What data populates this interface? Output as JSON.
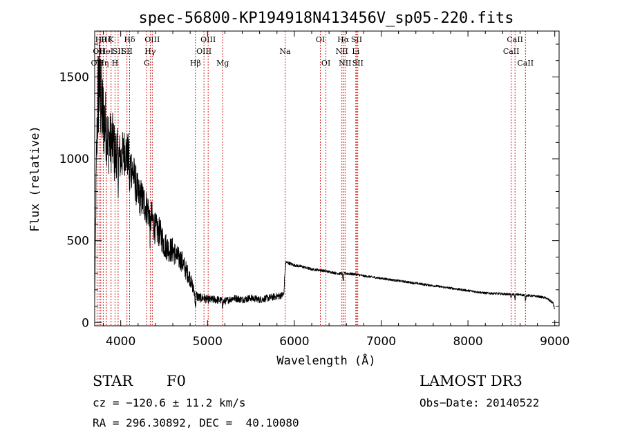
{
  "chart_data": {
    "type": "line",
    "title": "spec-56800-KP194918N413456V_sp05-220.fits",
    "xlabel": "Wavelength (Å)",
    "ylabel": "Flux (relative)",
    "xlim": [
      3700,
      9050
    ],
    "ylim": [
      -20,
      1780
    ],
    "x_ticks": [
      4000,
      5000,
      6000,
      7000,
      8000,
      9000
    ],
    "y_ticks": [
      0,
      500,
      1000,
      1500
    ],
    "line_color": "#000000",
    "marker_color": "#cc0000",
    "spectrum_profile": {
      "x": [
        3700,
        3720,
        3740,
        3760,
        3780,
        3800,
        3830,
        3860,
        3900,
        3950,
        4000,
        4050,
        4100,
        4150,
        4200,
        4250,
        4300,
        4350,
        4400,
        4450,
        4500,
        4550,
        4600,
        4650,
        4700,
        4750,
        4800,
        4850,
        4900,
        4950,
        5000,
        5100,
        5200,
        5300,
        5400,
        5500,
        5600,
        5700,
        5800,
        5880,
        5890,
        5900,
        5950,
        6000,
        6100,
        6200,
        6300,
        6400,
        6500,
        6600,
        6700,
        6800,
        7000,
        7200,
        7400,
        7600,
        7800,
        8000,
        8200,
        8400,
        8600,
        8800,
        8900,
        8980,
        9000
      ],
      "y": [
        120,
        1000,
        1400,
        1450,
        1300,
        1250,
        1200,
        1100,
        1100,
        1050,
        1000,
        1050,
        1000,
        900,
        780,
        750,
        700,
        650,
        570,
        550,
        480,
        450,
        440,
        400,
        380,
        320,
        270,
        180,
        150,
        150,
        140,
        140,
        130,
        150,
        140,
        150,
        140,
        150,
        160,
        170,
        330,
        370,
        360,
        350,
        340,
        325,
        320,
        310,
        300,
        300,
        295,
        285,
        270,
        255,
        240,
        225,
        210,
        195,
        180,
        175,
        170,
        160,
        150,
        120,
        80
      ],
      "noise": [
        0,
        150,
        320,
        320,
        300,
        260,
        220,
        200,
        190,
        170,
        150,
        150,
        140,
        130,
        120,
        120,
        110,
        110,
        100,
        90,
        90,
        80,
        80,
        70,
        70,
        60,
        50,
        35,
        30,
        28,
        25,
        25,
        22,
        22,
        22,
        22,
        22,
        22,
        22,
        22,
        10,
        10,
        10,
        9,
        9,
        8,
        8,
        8,
        8,
        8,
        8,
        7,
        7,
        7,
        7,
        7,
        7,
        7,
        7,
        7,
        7,
        7,
        7,
        8,
        8
      ]
    },
    "absorption_features": [
      {
        "x": 3934,
        "depth": 120
      },
      {
        "x": 3970,
        "depth": 110
      },
      {
        "x": 4102,
        "depth": 150
      },
      {
        "x": 4340,
        "depth": 120
      },
      {
        "x": 4861,
        "depth": 70
      },
      {
        "x": 5175,
        "depth": 30
      },
      {
        "x": 5893,
        "depth": 40
      },
      {
        "x": 6563,
        "depth": 50
      },
      {
        "x": 8498,
        "depth": 25
      },
      {
        "x": 8542,
        "depth": 30
      },
      {
        "x": 8662,
        "depth": 30
      }
    ],
    "line_markers": [
      {
        "x": 3727,
        "label": "OII",
        "row": 3
      },
      {
        "x": 3750,
        "label": "OII",
        "row": 2
      },
      {
        "x": 3770,
        "label": "Hθ",
        "row": 1
      },
      {
        "x": 3798,
        "label": "Hη",
        "row": 3
      },
      {
        "x": 3835,
        "label": "Hζ",
        "row": 1
      },
      {
        "x": 3835,
        "label": "HeI",
        "row": 2
      },
      {
        "x": 3889,
        "label": "K",
        "row": 1
      },
      {
        "x": 3934,
        "label": "H",
        "row": 3
      },
      {
        "x": 3970,
        "label": "SII",
        "row": 2
      },
      {
        "x": 4072,
        "label": "SII",
        "row": 2
      },
      {
        "x": 4102,
        "label": "Hδ",
        "row": 1
      },
      {
        "x": 4300,
        "label": "G",
        "row": 3
      },
      {
        "x": 4340,
        "label": "Hγ",
        "row": 2
      },
      {
        "x": 4363,
        "label": "OIII",
        "row": 1
      },
      {
        "x": 4861,
        "label": "Hβ",
        "row": 3
      },
      {
        "x": 4959,
        "label": "OIII",
        "row": 2
      },
      {
        "x": 5007,
        "label": "OIII",
        "row": 1
      },
      {
        "x": 5175,
        "label": "Mg",
        "row": 3
      },
      {
        "x": 5893,
        "label": "Na",
        "row": 2
      },
      {
        "x": 6300,
        "label": "OI",
        "row": 1
      },
      {
        "x": 6364,
        "label": "OI",
        "row": 3
      },
      {
        "x": 6548,
        "label": "NII",
        "row": 2
      },
      {
        "x": 6563,
        "label": "Hα",
        "row": 1
      },
      {
        "x": 6584,
        "label": "NII",
        "row": 3
      },
      {
        "x": 6708,
        "label": "Li",
        "row": 2
      },
      {
        "x": 6717,
        "label": "SII",
        "row": 1
      },
      {
        "x": 6731,
        "label": "SII",
        "row": 3
      },
      {
        "x": 8498,
        "label": "CaII",
        "row": 2
      },
      {
        "x": 8542,
        "label": "CaII",
        "row": 1
      },
      {
        "x": 8662,
        "label": "CaII",
        "row": 3
      }
    ]
  },
  "info": {
    "class_label": "STAR",
    "subclass": "F0",
    "survey": "LAMOST DR3",
    "redshift": "cz = −120.6 ± 11.2 km/s",
    "obs_date": "Obs−Date: 20140522",
    "coords": "RA = 296.30892, DEC =  40.10080"
  }
}
